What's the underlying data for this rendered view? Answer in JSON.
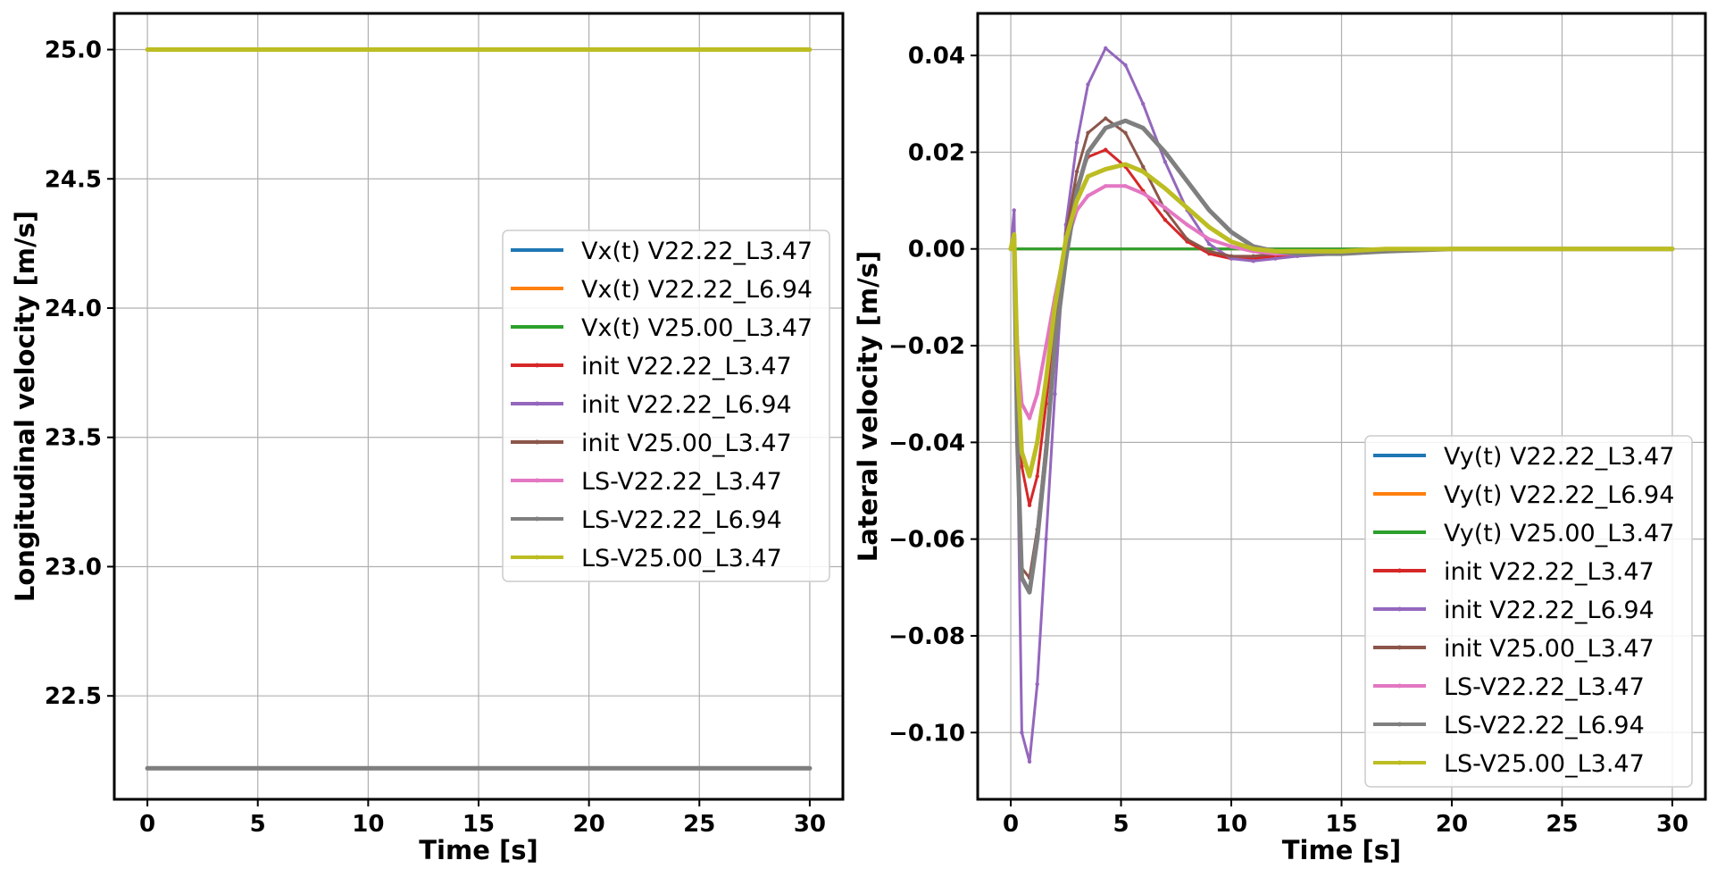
{
  "chart_data": [
    {
      "type": "line",
      "xlabel": "Time [s]",
      "ylabel": "Longitudinal velocity [m/s]",
      "xlim": [
        -1.5,
        31.5
      ],
      "ylim": [
        22.1,
        25.14
      ],
      "xticks": [
        0,
        5,
        10,
        15,
        20,
        25,
        30
      ],
      "xtick_labels": [
        "0",
        "5",
        "10",
        "15",
        "20",
        "25",
        "30"
      ],
      "yticks": [
        22.5,
        23.0,
        23.5,
        24.0,
        24.5,
        25.0
      ],
      "ytick_labels": [
        "22.5",
        "23.0",
        "23.5",
        "24.0",
        "24.5",
        "25.0"
      ],
      "grid": true,
      "legend_position": "center-right",
      "x": [
        0,
        30
      ],
      "series": [
        {
          "name": "Vx(t) V22.22_L3.47",
          "color": "#1f77b4",
          "lw": 3,
          "values": [
            22.22,
            22.22
          ]
        },
        {
          "name": "Vx(t) V22.22_L6.94",
          "color": "#ff7f0e",
          "lw": 3,
          "values": [
            22.22,
            22.22
          ]
        },
        {
          "name": "Vx(t) V25.00_L3.47",
          "color": "#2ca02c",
          "lw": 3,
          "values": [
            25.0,
            25.0
          ]
        },
        {
          "name": "init V22.22_L3.47",
          "color": "#d62728",
          "lw": 3,
          "marker": true,
          "values": [
            22.22,
            22.22
          ]
        },
        {
          "name": "init V22.22_L6.94",
          "color": "#9467bd",
          "lw": 3,
          "marker": true,
          "values": [
            22.22,
            22.22
          ]
        },
        {
          "name": "init V25.00_L3.47",
          "color": "#8c564b",
          "lw": 3,
          "marker": true,
          "values": [
            25.0,
            25.0
          ]
        },
        {
          "name": "LS-V22.22_L3.47",
          "color": "#e377c2",
          "lw": 4,
          "marker": true,
          "values": [
            22.22,
            22.22
          ]
        },
        {
          "name": "LS-V22.22_L6.94",
          "color": "#7f7f7f",
          "lw": 5,
          "marker": true,
          "values": [
            22.22,
            22.22
          ]
        },
        {
          "name": "LS-V25.00_L3.47",
          "color": "#bcbd22",
          "lw": 5,
          "marker": true,
          "values": [
            25.0,
            25.0
          ]
        }
      ]
    },
    {
      "type": "line",
      "xlabel": "Time [s]",
      "ylabel": "Lateral velocity [m/s]",
      "xlim": [
        -1.5,
        31.5
      ],
      "ylim": [
        -0.1138,
        0.0487
      ],
      "xticks": [
        0,
        5,
        10,
        15,
        20,
        25,
        30
      ],
      "xtick_labels": [
        "0",
        "5",
        "10",
        "15",
        "20",
        "25",
        "30"
      ],
      "yticks": [
        -0.1,
        -0.08,
        -0.06,
        -0.04,
        -0.02,
        0.0,
        0.02,
        0.04
      ],
      "ytick_labels": [
        "−0.10",
        "−0.08",
        "−0.06",
        "−0.04",
        "−0.02",
        "0.00",
        "0.02",
        "0.04"
      ],
      "grid": true,
      "legend_position": "lower-right",
      "x": [
        0,
        0.15,
        0.3,
        0.5,
        0.85,
        1.2,
        1.6,
        2,
        2.5,
        3,
        3.5,
        4.3,
        5.2,
        6,
        7,
        8,
        9,
        10,
        11,
        12,
        13,
        15,
        17,
        20,
        25,
        30
      ],
      "series": [
        {
          "name": "Vy(t) V22.22_L3.47",
          "color": "#1f77b4",
          "lw": 3,
          "values": [
            0,
            0,
            0,
            0,
            0,
            0,
            0,
            0,
            0,
            0,
            0,
            0,
            0,
            0,
            0,
            0,
            0,
            0,
            0,
            0,
            0,
            0,
            0,
            0,
            0,
            0
          ]
        },
        {
          "name": "Vy(t) V22.22_L6.94",
          "color": "#ff7f0e",
          "lw": 3,
          "values": [
            0,
            0,
            0,
            0,
            0,
            0,
            0,
            0,
            0,
            0,
            0,
            0,
            0,
            0,
            0,
            0,
            0,
            0,
            0,
            0,
            0,
            0,
            0,
            0,
            0,
            0
          ]
        },
        {
          "name": "Vy(t) V25.00_L3.47",
          "color": "#2ca02c",
          "lw": 3,
          "values": [
            0,
            0,
            0,
            0,
            0,
            0,
            0,
            0,
            0,
            0,
            0,
            0,
            0,
            0,
            0,
            0,
            0,
            0,
            0,
            0,
            0,
            0,
            0,
            0,
            0,
            0
          ]
        },
        {
          "name": "init V22.22_L3.47",
          "color": "#d62728",
          "lw": 3,
          "marker": true,
          "values": [
            0,
            0.002,
            -0.02,
            -0.045,
            -0.053,
            -0.047,
            -0.032,
            -0.015,
            0.002,
            0.013,
            0.019,
            0.0205,
            0.017,
            0.012,
            0.006,
            0.0015,
            -0.001,
            -0.002,
            -0.002,
            -0.0015,
            -0.001,
            -0.0005,
            0,
            0,
            0,
            0
          ]
        },
        {
          "name": "init V22.22_L6.94",
          "color": "#9467bd",
          "lw": 3,
          "marker": true,
          "values": [
            0,
            0.008,
            -0.04,
            -0.1,
            -0.106,
            -0.09,
            -0.06,
            -0.03,
            0.005,
            0.022,
            0.034,
            0.0415,
            0.038,
            0.03,
            0.018,
            0.008,
            0.001,
            -0.002,
            -0.0025,
            -0.002,
            -0.0015,
            -0.001,
            -0.0005,
            0,
            0,
            0
          ]
        },
        {
          "name": "init V25.00_L3.47",
          "color": "#8c564b",
          "lw": 3,
          "marker": true,
          "values": [
            0,
            0.002,
            -0.04,
            -0.066,
            -0.068,
            -0.058,
            -0.04,
            -0.018,
            0.003,
            0.016,
            0.024,
            0.027,
            0.024,
            0.017,
            0.008,
            0.002,
            -0.0005,
            -0.0015,
            -0.0015,
            -0.001,
            -0.001,
            -0.0005,
            0,
            0,
            0,
            0
          ]
        },
        {
          "name": "LS-V22.22_L3.47",
          "color": "#e377c2",
          "lw": 4,
          "marker": true,
          "values": [
            0,
            0,
            -0.02,
            -0.032,
            -0.035,
            -0.03,
            -0.02,
            -0.01,
            0.001,
            0.008,
            0.011,
            0.013,
            0.013,
            0.0115,
            0.0085,
            0.005,
            0.002,
            0.0005,
            -0.0005,
            -0.001,
            -0.001,
            -0.0005,
            0,
            0,
            0,
            0
          ]
        },
        {
          "name": "LS-V22.22_L6.94",
          "color": "#7f7f7f",
          "lw": 5,
          "marker": true,
          "values": [
            0,
            0.002,
            -0.04,
            -0.068,
            -0.071,
            -0.06,
            -0.042,
            -0.02,
            -0.002,
            0.012,
            0.02,
            0.025,
            0.0265,
            0.025,
            0.02,
            0.014,
            0.008,
            0.0035,
            0.0005,
            -0.0005,
            -0.001,
            -0.001,
            -0.0005,
            0,
            0,
            0
          ]
        },
        {
          "name": "LS-V25.00_L3.47",
          "color": "#bcbd22",
          "lw": 5,
          "marker": true,
          "values": [
            0,
            0.003,
            -0.025,
            -0.042,
            -0.047,
            -0.04,
            -0.027,
            -0.012,
            0.002,
            0.01,
            0.015,
            0.0165,
            0.0175,
            0.016,
            0.0125,
            0.0085,
            0.0045,
            0.0015,
            0,
            -0.0005,
            -0.0005,
            -0.0005,
            0,
            0,
            0,
            0
          ]
        }
      ]
    }
  ]
}
